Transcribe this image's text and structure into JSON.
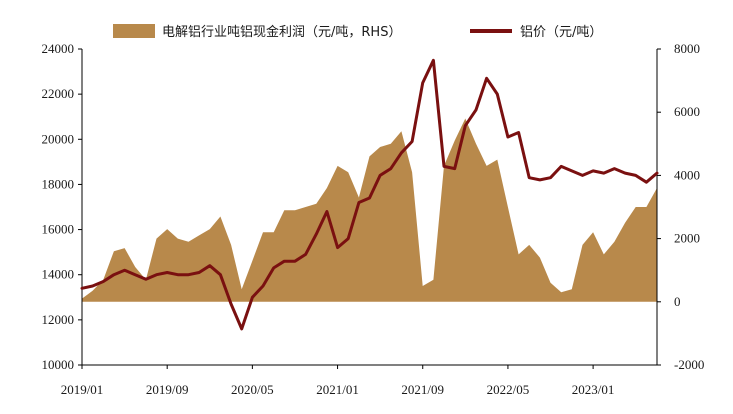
{
  "chart_data": {
    "type": "area+line",
    "title": "",
    "legend_position": "top-center",
    "x": [
      "2019/01",
      "2019/02",
      "2019/03",
      "2019/04",
      "2019/05",
      "2019/06",
      "2019/07",
      "2019/08",
      "2019/09",
      "2019/10",
      "2019/11",
      "2019/12",
      "2020/01",
      "2020/02",
      "2020/03",
      "2020/04",
      "2020/05",
      "2020/06",
      "2020/07",
      "2020/08",
      "2020/09",
      "2020/10",
      "2020/11",
      "2020/12",
      "2021/01",
      "2021/02",
      "2021/03",
      "2021/04",
      "2021/05",
      "2021/06",
      "2021/07",
      "2021/08",
      "2021/09",
      "2021/10",
      "2021/11",
      "2021/12",
      "2022/01",
      "2022/02",
      "2022/03",
      "2022/04",
      "2022/05",
      "2022/06",
      "2022/07",
      "2022/08",
      "2022/09",
      "2022/10",
      "2022/11",
      "2022/12",
      "2023/01",
      "2023/02",
      "2023/03",
      "2023/04",
      "2023/05",
      "2023/06",
      "2023/07"
    ],
    "x_tick_labels": [
      "2019/01",
      "2019/09",
      "2020/05",
      "2021/01",
      "2021/09",
      "2022/05",
      "2023/01"
    ],
    "y_left": {
      "min": 10000,
      "max": 24000,
      "step": 2000,
      "ticks": [
        "10000",
        "12000",
        "14000",
        "16000",
        "18000",
        "20000",
        "22000",
        "24000"
      ]
    },
    "y_right": {
      "min": -2000,
      "max": 8000,
      "step": 2000,
      "ticks": [
        "-2000",
        "0",
        "2000",
        "4000",
        "6000",
        "8000"
      ]
    },
    "series": [
      {
        "name": "电解铝行业吨铝现金利润（元/吨，RHS）",
        "kind": "area",
        "axis": "right",
        "color": "#b8894b",
        "values": [
          100,
          350,
          700,
          1600,
          1700,
          1100,
          700,
          2000,
          2300,
          2000,
          1900,
          2100,
          2300,
          2700,
          1800,
          400,
          1300,
          2200,
          2200,
          2900,
          2900,
          3000,
          3100,
          3600,
          4300,
          4100,
          3300,
          4600,
          4900,
          5000,
          5400,
          4100,
          500,
          700,
          4300,
          5100,
          5800,
          5000,
          4300,
          4500,
          3000,
          1500,
          1800,
          1400,
          600,
          300,
          400,
          1800,
          2200,
          1500,
          1900,
          2500,
          3000,
          3000,
          3600
        ]
      },
      {
        "name": "铝价（元/吨）",
        "kind": "line",
        "axis": "left",
        "color": "#7a1010",
        "values": [
          13400,
          13500,
          13700,
          14000,
          14200,
          14000,
          13800,
          14000,
          14100,
          14000,
          14000,
          14100,
          14400,
          14000,
          12700,
          11600,
          13000,
          13500,
          14300,
          14600,
          14600,
          14900,
          15800,
          16800,
          15200,
          15600,
          17200,
          17400,
          18400,
          18700,
          19400,
          19900,
          22500,
          23500,
          18800,
          18700,
          20600,
          21300,
          22700,
          22000,
          20100,
          20300,
          18300,
          18200,
          18300,
          18800,
          18600,
          18400,
          18600,
          18500,
          18700,
          18500,
          18400,
          18100,
          18500
        ]
      }
    ]
  }
}
